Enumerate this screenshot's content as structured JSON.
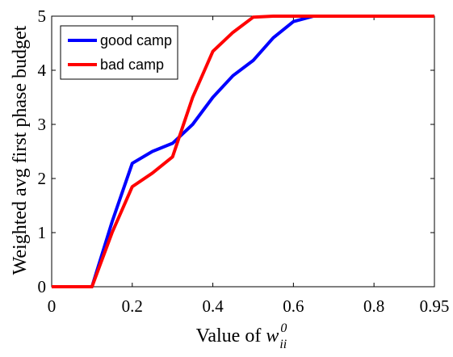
{
  "chart_data": {
    "type": "line",
    "xlabel_prefix": "Value of ",
    "xlabel_var": "w",
    "xlabel_sup": "0",
    "xlabel_sub": "ii",
    "ylabel": "Weighted avg first phase budget",
    "xlim": [
      0,
      0.95
    ],
    "ylim": [
      0,
      5
    ],
    "xticks": [
      0,
      0.2,
      0.4,
      0.6,
      0.8,
      0.95
    ],
    "xtick_labels": [
      "0",
      "0.2",
      "0.4",
      "0.6",
      "0.8",
      "0.95"
    ],
    "yticks": [
      0,
      1,
      2,
      3,
      4,
      5
    ],
    "ytick_labels": [
      "0",
      "1",
      "2",
      "3",
      "4",
      "5"
    ],
    "grid": false,
    "legend_position": "top-left",
    "series": [
      {
        "name": "good camp",
        "color": "#0000ff",
        "x": [
          0,
          0.1,
          0.15,
          0.2,
          0.25,
          0.3,
          0.35,
          0.4,
          0.45,
          0.5,
          0.55,
          0.6,
          0.65,
          0.7,
          0.95
        ],
        "y": [
          0,
          0,
          1.2,
          2.28,
          2.5,
          2.65,
          3.0,
          3.5,
          3.9,
          4.18,
          4.6,
          4.9,
          5.0,
          5.0,
          5.0
        ]
      },
      {
        "name": "bad camp",
        "color": "#ff0000",
        "x": [
          0,
          0.1,
          0.15,
          0.2,
          0.25,
          0.3,
          0.35,
          0.4,
          0.45,
          0.5,
          0.55,
          0.6,
          0.65,
          0.95
        ],
        "y": [
          0,
          0,
          1.0,
          1.85,
          2.1,
          2.4,
          3.5,
          4.35,
          4.7,
          4.98,
          5.0,
          5.0,
          5.0,
          5.0
        ]
      }
    ]
  }
}
